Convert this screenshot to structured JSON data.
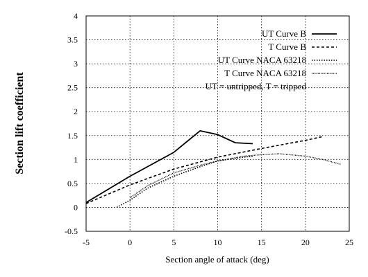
{
  "chart_data": {
    "type": "line",
    "title": "",
    "xlabel": "Section angle of attack (deg)",
    "ylabel": "Section lift coefficient",
    "xlim": [
      -5,
      25
    ],
    "ylim": [
      -0.5,
      4
    ],
    "xticks": [
      "-5",
      "0",
      "5",
      "10",
      "15",
      "20",
      "25"
    ],
    "yticks": [
      "-0.5",
      "0",
      "0.5",
      "1",
      "1.5",
      "2",
      "2.5",
      "3",
      "3.5",
      "4"
    ],
    "grid": true,
    "legend_position": "top-right",
    "note": "UT = untripped, T = tripped",
    "series": [
      {
        "name": "UT Curve B",
        "style": "solid",
        "points": [
          [
            -5,
            0.1
          ],
          [
            0,
            0.65
          ],
          [
            5,
            1.15
          ],
          [
            8,
            1.6
          ],
          [
            10,
            1.52
          ],
          [
            12,
            1.35
          ],
          [
            14,
            1.33
          ]
        ]
      },
      {
        "name": "T Curve B",
        "style": "dashed",
        "points": [
          [
            -5,
            0.08
          ],
          [
            0,
            0.47
          ],
          [
            5,
            0.8
          ],
          [
            10,
            1.05
          ],
          [
            15,
            1.23
          ],
          [
            20,
            1.4
          ],
          [
            22,
            1.48
          ]
        ]
      },
      {
        "name": "UT Curve NACA 63218",
        "style": "dotted",
        "points": [
          [
            -1.5,
            0.0
          ],
          [
            0,
            0.15
          ],
          [
            2,
            0.4
          ],
          [
            5,
            0.65
          ],
          [
            8,
            0.85
          ],
          [
            10,
            0.97
          ],
          [
            13,
            1.05
          ],
          [
            14,
            1.07
          ]
        ]
      },
      {
        "name": "T Curve NACA 63218",
        "style": "dense-dotted",
        "points": [
          [
            0,
            0.2
          ],
          [
            2,
            0.45
          ],
          [
            5,
            0.72
          ],
          [
            8,
            0.88
          ],
          [
            10,
            0.97
          ],
          [
            13,
            1.07
          ],
          [
            15,
            1.1
          ],
          [
            17,
            1.12
          ],
          [
            20,
            1.07
          ],
          [
            22,
            1.0
          ],
          [
            24,
            0.9
          ]
        ]
      }
    ]
  }
}
